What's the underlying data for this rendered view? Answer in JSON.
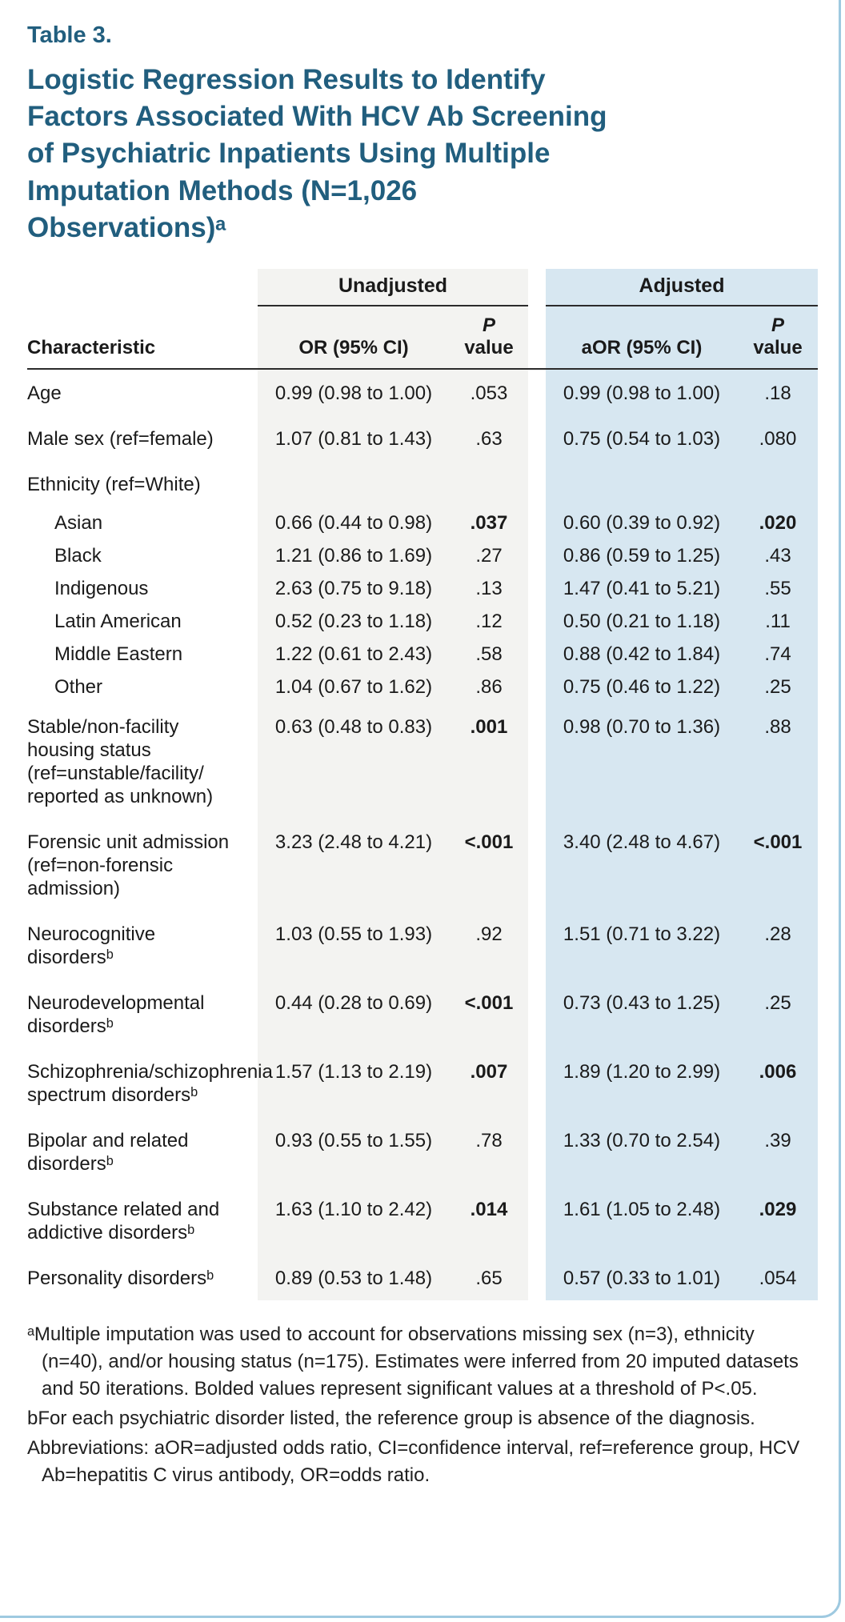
{
  "page": {
    "table_label": "Table 3.",
    "title": "Logistic Regression Results to Identify Factors Associated With HCV Ab Screening of Psychiatric Inpatients Using Multiple Imputation Methods (N=1,026 Observations)ᵃ",
    "accent_color": "#215e7e",
    "unadjusted_bg": "#f3f3f1",
    "adjusted_bg": "#d7e7f1"
  },
  "table": {
    "group_headers": {
      "unadjusted": "Unadjusted",
      "adjusted": "Adjusted"
    },
    "columns": {
      "characteristic": "Characteristic",
      "or": "OR (95% CI)",
      "aor": "aOR (95% CI)",
      "p_italic": "P",
      "p_rest": "value"
    },
    "rows": [
      {
        "characteristic": "Age",
        "indent": false,
        "or": "0.99 (0.98 to 1.00)",
        "p1": ".053",
        "p1_bold": false,
        "aor": "0.99 (0.98 to 1.00)",
        "p2": ".18",
        "p2_bold": false
      },
      {
        "characteristic": "Male sex (ref=female)",
        "indent": false,
        "or": "1.07 (0.81 to 1.43)",
        "p1": ".63",
        "p1_bold": false,
        "aor": "0.75 (0.54 to 1.03)",
        "p2": ".080",
        "p2_bold": false
      },
      {
        "characteristic": "Ethnicity (ref=White)",
        "indent": false,
        "or": "",
        "p1": "",
        "p1_bold": false,
        "aor": "",
        "p2": "",
        "p2_bold": false
      },
      {
        "characteristic": "Asian",
        "indent": true,
        "or": "0.66 (0.44 to 0.98)",
        "p1": ".037",
        "p1_bold": true,
        "aor": "0.60 (0.39 to 0.92)",
        "p2": ".020",
        "p2_bold": true
      },
      {
        "characteristic": "Black",
        "indent": true,
        "or": "1.21 (0.86 to 1.69)",
        "p1": ".27",
        "p1_bold": false,
        "aor": "0.86 (0.59 to 1.25)",
        "p2": ".43",
        "p2_bold": false
      },
      {
        "characteristic": "Indigenous",
        "indent": true,
        "or": "2.63 (0.75 to 9.18)",
        "p1": ".13",
        "p1_bold": false,
        "aor": "1.47 (0.41 to 5.21)",
        "p2": ".55",
        "p2_bold": false
      },
      {
        "characteristic": "Latin American",
        "indent": true,
        "or": "0.52 (0.23 to 1.18)",
        "p1": ".12",
        "p1_bold": false,
        "aor": "0.50 (0.21 to 1.18)",
        "p2": ".11",
        "p2_bold": false
      },
      {
        "characteristic": "Middle Eastern",
        "indent": true,
        "or": "1.22 (0.61 to 2.43)",
        "p1": ".58",
        "p1_bold": false,
        "aor": "0.88 (0.42 to 1.84)",
        "p2": ".74",
        "p2_bold": false
      },
      {
        "characteristic": "Other",
        "indent": true,
        "or": "1.04 (0.67 to 1.62)",
        "p1": ".86",
        "p1_bold": false,
        "aor": "0.75 (0.46 to 1.22)",
        "p2": ".25",
        "p2_bold": false
      },
      {
        "characteristic": "Stable/non-facility housing status (ref=unstable/facility/ reported as unknown)",
        "indent": false,
        "or": "0.63 (0.48 to 0.83)",
        "p1": ".001",
        "p1_bold": true,
        "aor": "0.98 (0.70 to 1.36)",
        "p2": ".88",
        "p2_bold": false
      },
      {
        "characteristic": "Forensic unit admission (ref=non-forensic admission)",
        "indent": false,
        "or": "3.23 (2.48 to 4.21)",
        "p1": "<.001",
        "p1_bold": true,
        "aor": "3.40 (2.48 to 4.67)",
        "p2": "<.001",
        "p2_bold": true
      },
      {
        "characteristic": "Neurocognitive disordersᵇ",
        "indent": false,
        "or": "1.03 (0.55 to 1.93)",
        "p1": ".92",
        "p1_bold": false,
        "aor": "1.51 (0.71 to 3.22)",
        "p2": ".28",
        "p2_bold": false
      },
      {
        "characteristic": "Neurodevelopmental disordersᵇ",
        "indent": false,
        "or": "0.44 (0.28 to 0.69)",
        "p1": "<.001",
        "p1_bold": true,
        "aor": "0.73 (0.43 to 1.25)",
        "p2": ".25",
        "p2_bold": false
      },
      {
        "characteristic": "Schizophrenia/schizophrenia spectrum disordersᵇ",
        "indent": false,
        "or": "1.57 (1.13 to 2.19)",
        "p1": ".007",
        "p1_bold": true,
        "aor": "1.89 (1.20 to 2.99)",
        "p2": ".006",
        "p2_bold": true
      },
      {
        "characteristic": "Bipolar and related disordersᵇ",
        "indent": false,
        "or": "0.93 (0.55 to 1.55)",
        "p1": ".78",
        "p1_bold": false,
        "aor": "1.33 (0.70 to 2.54)",
        "p2": ".39",
        "p2_bold": false
      },
      {
        "characteristic": "Substance related and addictive disordersᵇ",
        "indent": false,
        "or": "1.63 (1.10 to 2.42)",
        "p1": ".014",
        "p1_bold": true,
        "aor": "1.61 (1.05 to 2.48)",
        "p2": ".029",
        "p2_bold": true
      },
      {
        "characteristic": "Personality disordersᵇ",
        "indent": false,
        "or": "0.89 (0.53 to 1.48)",
        "p1": ".65",
        "p1_bold": false,
        "aor": "0.57 (0.33 to 1.01)",
        "p2": ".054",
        "p2_bold": false
      }
    ]
  },
  "footnotes": [
    "ᵃMultiple imputation was used to account for observations missing sex (n=3), ethnicity (n=40), and/or housing status (n=175). Estimates were inferred from 20 imputed datasets and 50 iterations. Bolded values represent significant values at a threshold of P<.05.",
    "bFor each psychiatric disorder listed, the reference group is absence of the diagnosis.",
    "Abbreviations: aOR=adjusted odds ratio, CI=confidence interval, ref=reference group, HCV Ab=hepatitis C virus antibody, OR=odds ratio."
  ]
}
